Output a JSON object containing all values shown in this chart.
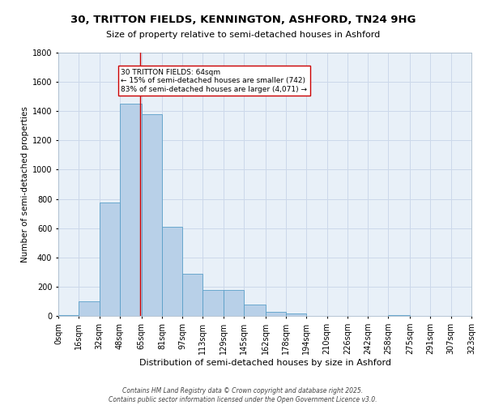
{
  "title": "30, TRITTON FIELDS, KENNINGTON, ASHFORD, TN24 9HG",
  "subtitle": "Size of property relative to semi-detached houses in Ashford",
  "xlabel": "Distribution of semi-detached houses by size in Ashford",
  "ylabel": "Number of semi-detached properties",
  "bin_edges": [
    0,
    16,
    32,
    48,
    65,
    81,
    97,
    113,
    129,
    145,
    162,
    178,
    194,
    210,
    226,
    242,
    258,
    275,
    291,
    307,
    323
  ],
  "bin_labels": [
    "0sqm",
    "16sqm",
    "32sqm",
    "48sqm",
    "65sqm",
    "81sqm",
    "97sqm",
    "113sqm",
    "129sqm",
    "145sqm",
    "162sqm",
    "178sqm",
    "194sqm",
    "210sqm",
    "226sqm",
    "242sqm",
    "258sqm",
    "275sqm",
    "291sqm",
    "307sqm",
    "323sqm"
  ],
  "counts": [
    5,
    100,
    775,
    1450,
    1380,
    610,
    290,
    175,
    175,
    80,
    28,
    15,
    0,
    0,
    0,
    0,
    5,
    0,
    0,
    0
  ],
  "bar_color": "#b8d0e8",
  "bar_edge_color": "#5a9fc8",
  "grid_color": "#ccd8ea",
  "background_color": "#e8f0f8",
  "property_line_x": 64,
  "red_line_color": "#cc0000",
  "annotation_text": "30 TRITTON FIELDS: 64sqm\n← 15% of semi-detached houses are smaller (742)\n83% of semi-detached houses are larger (4,071) →",
  "annotation_box_facecolor": "#ffffff",
  "annotation_box_edgecolor": "#cc0000",
  "footer_text": "Contains HM Land Registry data © Crown copyright and database right 2025.\nContains public sector information licensed under the Open Government Licence v3.0.",
  "ylim": [
    0,
    1800
  ],
  "yticks": [
    0,
    200,
    400,
    600,
    800,
    1000,
    1200,
    1400,
    1600,
    1800
  ],
  "title_fontsize": 9.5,
  "subtitle_fontsize": 8,
  "xlabel_fontsize": 8,
  "ylabel_fontsize": 7.5,
  "tick_fontsize": 7,
  "annotation_fontsize": 6.5,
  "footer_fontsize": 5.5
}
